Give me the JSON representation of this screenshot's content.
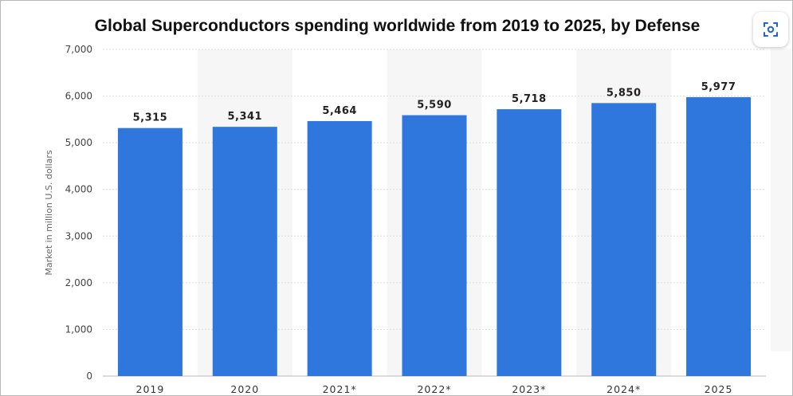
{
  "chart_data": {
    "type": "bar",
    "title": "Global Superconductors spending worldwide from 2019 to 2025, by Defense",
    "xlabel": "",
    "ylabel": "Market in million U.S. dollars",
    "categories": [
      "2019",
      "2020",
      "2021*",
      "2022*",
      "2023*",
      "2024*",
      "2025"
    ],
    "values": [
      5315,
      5341,
      5464,
      5590,
      5718,
      5850,
      5977
    ],
    "value_labels": [
      "5,315",
      "5,341",
      "5,464",
      "5,590",
      "5,718",
      "5,850",
      "5,977"
    ],
    "yticks": [
      0,
      1000,
      2000,
      3000,
      4000,
      5000,
      6000,
      7000
    ],
    "ytick_labels": [
      "0",
      "1,000",
      "2,000",
      "3,000",
      "4,000",
      "5,000",
      "6,000",
      "7,000"
    ],
    "ylim": [
      0,
      7000
    ],
    "grid": true,
    "legend": "none",
    "bar_color": "#2f76dd"
  },
  "icons": {
    "lens": "lens-scan-icon"
  }
}
